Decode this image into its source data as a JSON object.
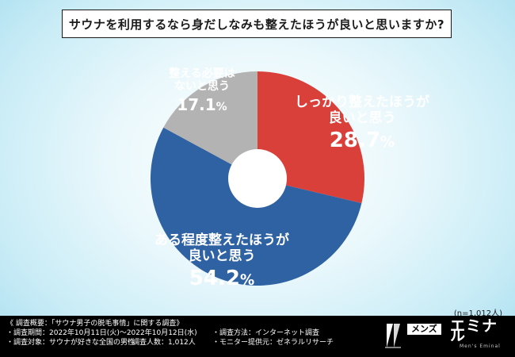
{
  "title": "サウナを利用するなら身だしなみも整えたほうが良いと思いますか?",
  "sample_note": "(n=1,012人)",
  "chart_data": {
    "type": "pie",
    "donut": true,
    "title": "サウナを利用するなら身だしなみも整えたほうが良いと思いますか?",
    "slices": [
      {
        "label_line1": "しっかり整えたほうが",
        "label_line2": "良いと思う",
        "value": 28.7,
        "pct_main": "28.",
        "pct_dec": "7",
        "pct_sign": "%",
        "color": "#d9403a"
      },
      {
        "label_line1": "ある程度整えたほうが",
        "label_line2": "良いと思う",
        "value": 54.2,
        "pct_main": "54.",
        "pct_dec": "2",
        "pct_sign": "%",
        "color": "#2f62a3"
      },
      {
        "label_line1": "整える必要は",
        "label_line2": "ないと思う",
        "value": 17.1,
        "pct_main": "17.",
        "pct_dec": "1",
        "pct_sign": "%",
        "color": "#b3b3b3"
      }
    ]
  },
  "footer": {
    "survey_title": "《 調査概要：「サウナ男子の脱毛事情」に関する調査》",
    "period": "・調査期間：2022年10月11日(火)～2022年10月12日(水)",
    "method": "・調査方法：インターネット調査",
    "target": "・調査対象：サウナが好きな全国の男性",
    "count": "・調査人数：1,012人",
    "provider": "・モニター提供元：ゼネラルリサーチ"
  },
  "brand": {
    "mens": "メンズ",
    "name": "エミナル",
    "tagline": "Men's Eminal"
  }
}
